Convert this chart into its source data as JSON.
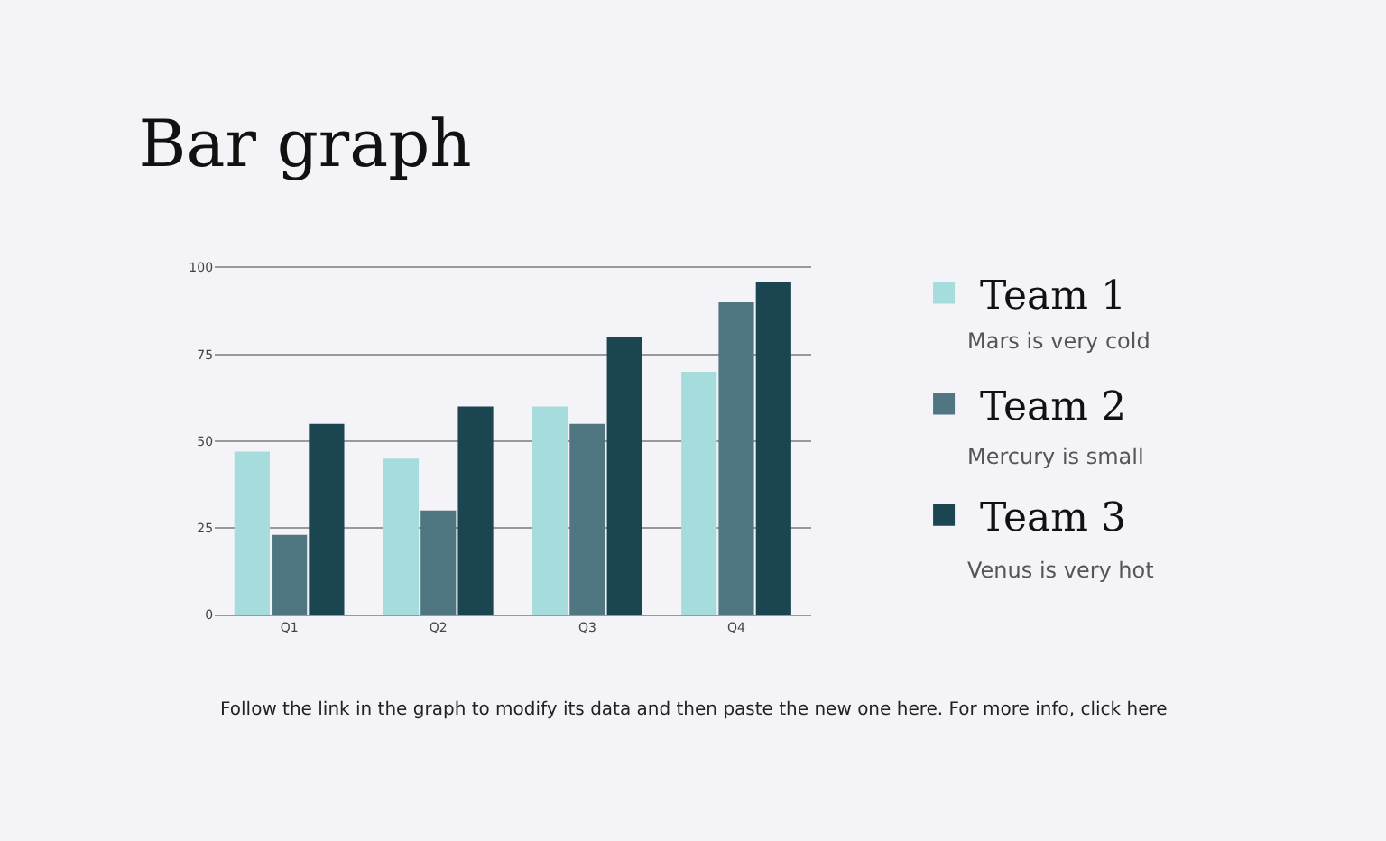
{
  "chart_data": {
    "type": "bar",
    "title": "Bar graph",
    "categories": [
      "Q1",
      "Q2",
      "Q3",
      "Q4"
    ],
    "series": [
      {
        "name": "Team 1",
        "color": "#a6dcdc",
        "values": [
          47,
          45,
          60,
          70
        ]
      },
      {
        "name": "Team 2",
        "color": "#4f7681",
        "values": [
          23,
          30,
          55,
          90
        ]
      },
      {
        "name": "Team 3",
        "color": "#1c4552",
        "values": [
          55,
          60,
          80,
          96
        ]
      }
    ],
    "ylim": [
      0,
      100
    ],
    "yticks": [
      0,
      25,
      50,
      75,
      100
    ],
    "grid": "y",
    "legend": "right",
    "annotations": [
      "Mars is very cold",
      "Mercury is small",
      "Venus is very hot",
      "Follow the link in the graph to modify its data and then paste the new one here. For more info, click here"
    ]
  }
}
